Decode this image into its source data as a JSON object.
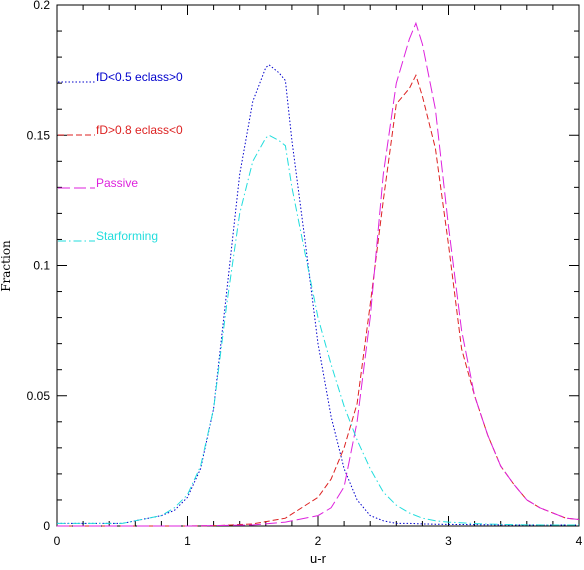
{
  "chart_data": {
    "type": "line",
    "xlabel": "u-r",
    "ylabel": "Fraction",
    "xlim": [
      0,
      4
    ],
    "ylim": [
      0,
      0.2
    ],
    "xticks": [
      0,
      1,
      2,
      3,
      4
    ],
    "xtick_labels": [
      "0",
      "1",
      "2",
      "3",
      "4"
    ],
    "yticks": [
      0,
      0.05,
      0.1,
      0.15,
      0.2
    ],
    "ytick_labels": [
      "0",
      "0.05",
      "0.1",
      "0.15",
      "0.2"
    ],
    "legend_position": "top-left",
    "grid": false,
    "series": [
      {
        "name": "fD<0.5 eclass>0",
        "color": "#0000cc",
        "dash": "dotted",
        "x": [
          0.0,
          0.25,
          0.5,
          0.6,
          0.7,
          0.8,
          0.9,
          1.0,
          1.1,
          1.2,
          1.3,
          1.4,
          1.5,
          1.6,
          1.625,
          1.7,
          1.75,
          1.8,
          1.9,
          2.0,
          2.1,
          2.2,
          2.3,
          2.4,
          2.5,
          2.6,
          2.7,
          2.8,
          2.9,
          3.0,
          3.25,
          3.5,
          3.75,
          4.0
        ],
        "y": [
          0.001,
          0.001,
          0.001,
          0.002,
          0.003,
          0.004,
          0.006,
          0.011,
          0.022,
          0.045,
          0.09,
          0.135,
          0.163,
          0.176,
          0.177,
          0.174,
          0.171,
          0.148,
          0.11,
          0.07,
          0.042,
          0.022,
          0.01,
          0.004,
          0.002,
          0.001,
          0.001,
          0.0008,
          0.0007,
          0.0006,
          0.0005,
          0.0004,
          0.0004,
          0.0004
        ]
      },
      {
        "name": "fD>0.8 eclass<0",
        "color": "#dd2222",
        "dash": "dashed",
        "x": [
          0.0,
          0.5,
          1.0,
          1.25,
          1.5,
          1.75,
          2.0,
          2.1,
          2.2,
          2.3,
          2.4,
          2.5,
          2.6,
          2.7,
          2.75,
          2.8,
          2.9,
          3.0,
          3.1,
          3.2,
          3.3,
          3.4,
          3.5,
          3.6,
          3.7,
          3.8,
          3.9,
          4.0
        ],
        "y": [
          0.0,
          0.0,
          0.0,
          0.0002,
          0.0008,
          0.003,
          0.011,
          0.018,
          0.03,
          0.047,
          0.085,
          0.125,
          0.162,
          0.168,
          0.173,
          0.165,
          0.145,
          0.108,
          0.068,
          0.05,
          0.035,
          0.023,
          0.016,
          0.01,
          0.007,
          0.005,
          0.003,
          0.0025
        ]
      },
      {
        "name": "Passive",
        "color": "#dd22dd",
        "dash": "long-dash",
        "x": [
          0.0,
          0.5,
          1.0,
          1.5,
          1.75,
          2.0,
          2.1,
          2.2,
          2.3,
          2.4,
          2.5,
          2.6,
          2.7,
          2.75,
          2.8,
          2.9,
          3.0,
          3.1,
          3.2,
          3.3,
          3.4,
          3.5,
          3.6,
          3.7,
          3.8,
          3.9,
          4.0
        ],
        "y": [
          0.0,
          0.0,
          0.0,
          0.0004,
          0.0015,
          0.004,
          0.007,
          0.015,
          0.04,
          0.08,
          0.135,
          0.17,
          0.187,
          0.193,
          0.185,
          0.16,
          0.115,
          0.075,
          0.05,
          0.035,
          0.023,
          0.016,
          0.01,
          0.007,
          0.005,
          0.003,
          0.0025
        ]
      },
      {
        "name": "Starforming",
        "color": "#22dddd",
        "dash": "dash-dot",
        "x": [
          0.0,
          0.25,
          0.5,
          0.6,
          0.7,
          0.8,
          0.9,
          1.0,
          1.1,
          1.2,
          1.3,
          1.4,
          1.5,
          1.6,
          1.625,
          1.7,
          1.75,
          1.8,
          1.9,
          2.0,
          2.1,
          2.2,
          2.3,
          2.4,
          2.5,
          2.6,
          2.7,
          2.8,
          2.9,
          3.0,
          3.25,
          3.5,
          3.75,
          4.0
        ],
        "y": [
          0.001,
          0.001,
          0.001,
          0.002,
          0.003,
          0.004,
          0.007,
          0.012,
          0.023,
          0.045,
          0.085,
          0.12,
          0.14,
          0.149,
          0.15,
          0.148,
          0.146,
          0.13,
          0.105,
          0.08,
          0.062,
          0.046,
          0.033,
          0.022,
          0.013,
          0.008,
          0.005,
          0.003,
          0.002,
          0.0015,
          0.0008,
          0.0005,
          0.0004,
          0.0004
        ]
      }
    ]
  }
}
